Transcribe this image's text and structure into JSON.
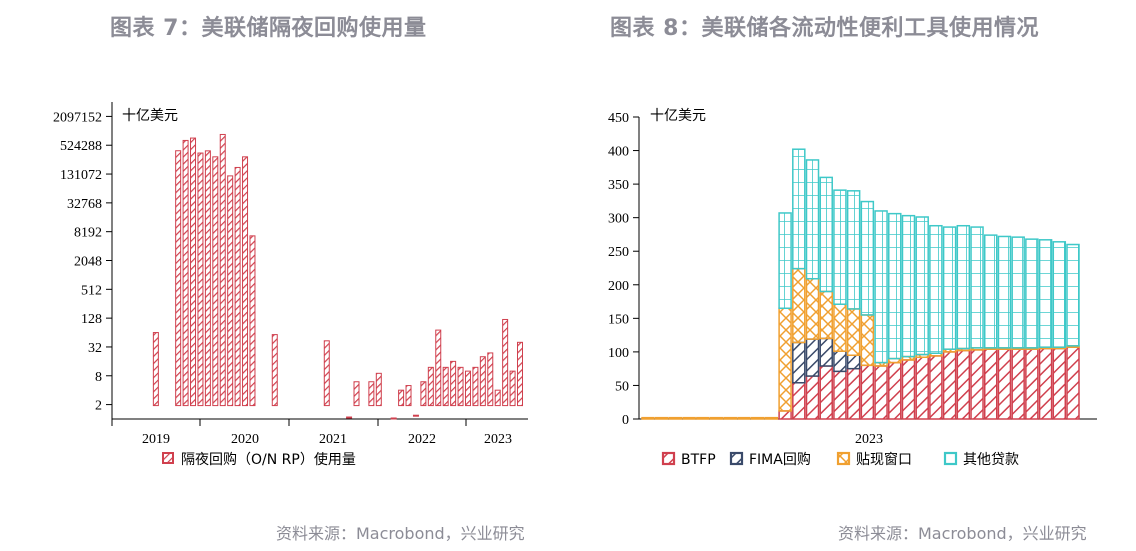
{
  "titles": {
    "left": "图表 7：美联储隔夜回购使用量",
    "right": "图表 8：美联储各流动性便利工具使用情况"
  },
  "sources": {
    "left": "资料来源：Macrobond，兴业研究",
    "right": "资料来源：Macrobond，兴业研究"
  },
  "colors": {
    "red": "#d0404e",
    "navy": "#3a4a6a",
    "orange": "#f0a030",
    "cyan": "#3ec8c8"
  },
  "chart_data": [
    {
      "type": "bar",
      "unit_label": "十亿美元",
      "scale": "log2",
      "ylim": [
        1,
        4194304
      ],
      "y_ticks": [
        "2",
        "8",
        "32",
        "128",
        "512",
        "2048",
        "8192",
        "32768",
        "131072",
        "524288",
        "2097152"
      ],
      "x_ticks": [
        "2019",
        "2020",
        "2021",
        "2022",
        "2023"
      ],
      "series": [
        {
          "name": "隔夜回购（O/N RP）使用量",
          "color": "#d0404e",
          "values": [
            null,
            null,
            64,
            null,
            null,
            402000,
            660000,
            740000,
            360000,
            400000,
            300000,
            880000,
            120000,
            180000,
            300000,
            6700,
            null,
            null,
            58,
            null,
            null,
            null,
            null,
            null,
            null,
            43,
            null,
            null,
            1.1,
            6,
            null,
            6,
            9,
            null,
            0.9,
            4,
            5,
            1.2,
            6,
            12,
            72,
            12,
            16,
            12,
            10,
            12,
            20,
            24,
            4,
            120,
            10,
            40
          ]
        }
      ]
    },
    {
      "type": "bar",
      "stacked": true,
      "unit_label": "十亿美元",
      "ylim": [
        0,
        450
      ],
      "y_ticks": [
        "0",
        "50",
        "100",
        "150",
        "200",
        "250",
        "300",
        "350",
        "400",
        "450"
      ],
      "x_ticks": [
        "2023"
      ],
      "series": [
        {
          "name": "BTFP",
          "color": "#d0404e",
          "values": [
            0,
            0,
            0,
            0,
            0,
            0,
            0,
            0,
            0,
            0,
            12,
            54,
            64,
            79,
            71,
            75,
            80,
            79,
            84,
            88,
            92,
            94,
            100,
            102,
            103,
            104,
            104,
            104,
            104,
            105,
            105,
            107
          ]
        },
        {
          "name": "FIMA回购",
          "color": "#3a4a6a",
          "values": [
            0,
            0,
            0,
            0,
            0,
            0,
            0,
            0,
            0,
            0,
            0,
            60,
            55,
            41,
            30,
            20,
            0,
            0,
            0,
            0,
            0,
            0,
            0,
            0,
            0,
            0,
            0,
            0,
            0,
            0,
            0,
            0
          ]
        },
        {
          "name": "贴现窗口",
          "color": "#f0a030",
          "values": [
            2,
            2,
            2,
            2,
            2,
            2,
            2,
            2,
            2,
            2,
            153,
            110,
            90,
            70,
            70,
            69,
            75,
            5,
            6,
            5,
            4,
            4,
            4,
            3,
            3,
            2,
            2,
            2,
            2,
            2,
            2,
            2
          ]
        },
        {
          "name": "其他贷款",
          "color": "#3ec8c8",
          "values": [
            0,
            0,
            0,
            0,
            0,
            0,
            0,
            0,
            0,
            0,
            142,
            178,
            177,
            170,
            170,
            176,
            169,
            226,
            216,
            210,
            205,
            190,
            182,
            183,
            180,
            168,
            166,
            165,
            162,
            160,
            157,
            151
          ]
        }
      ]
    }
  ]
}
